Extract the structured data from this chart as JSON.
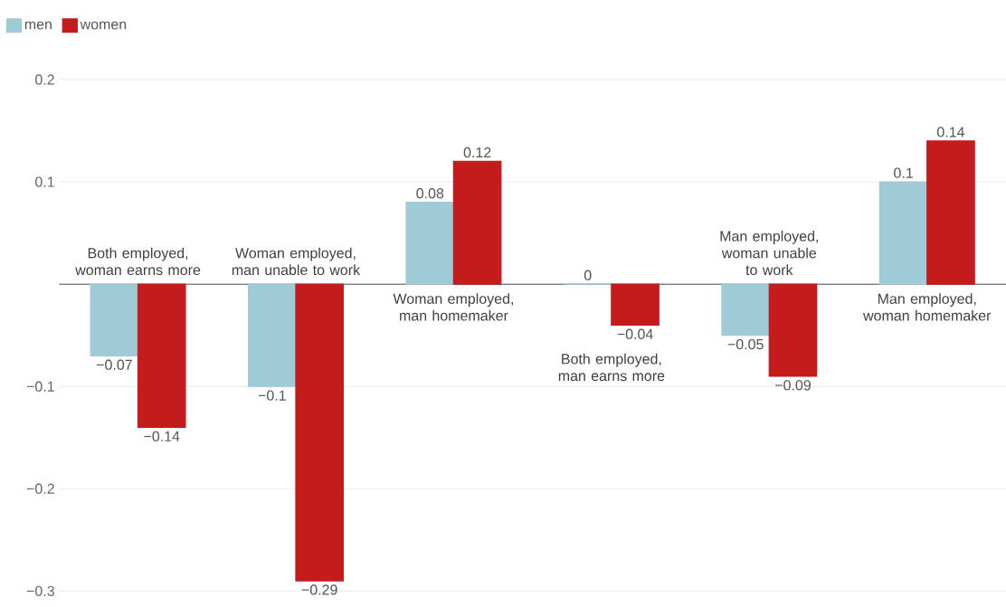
{
  "chart_data": {
    "type": "bar",
    "categories": [
      "Both employed, woman earns more",
      "Woman employed, man unable to work",
      "Woman employed, man homemaker",
      "Both employed, man earns more",
      "Man employed, woman unable to work",
      "Man employed, woman homemaker"
    ],
    "series": [
      {
        "name": "men",
        "color": "#9ecbd6",
        "values": [
          -0.07,
          -0.1,
          0.08,
          0,
          -0.05,
          0.1
        ],
        "value_labels": [
          "−0.07",
          "−0.1",
          "0.08",
          "0",
          "−0.05",
          "0.1"
        ]
      },
      {
        "name": "women",
        "color": "#c41c1c",
        "values": [
          -0.14,
          -0.29,
          0.12,
          -0.04,
          -0.09,
          0.14
        ],
        "value_labels": [
          "−0.14",
          "−0.29",
          "0.12",
          "−0.04",
          "−0.09",
          "0.14"
        ]
      }
    ],
    "ylim": [
      -0.3,
      0.2
    ],
    "yticks": [
      {
        "value": -0.3,
        "label": "−0.3"
      },
      {
        "value": -0.2,
        "label": "−0.2"
      },
      {
        "value": -0.1,
        "label": "−0.1"
      },
      0.1,
      0.2
    ],
    "grid": "y",
    "legend": "top left"
  }
}
